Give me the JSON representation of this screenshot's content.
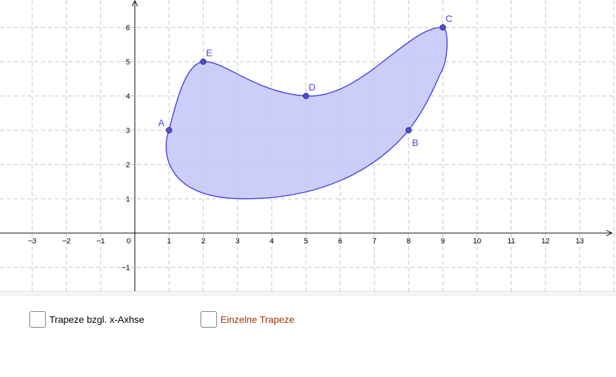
{
  "graphics": {
    "x_ticks": [
      "−3",
      "−2",
      "−1",
      "0",
      "1",
      "2",
      "3",
      "4",
      "5",
      "6",
      "7",
      "8",
      "9",
      "10",
      "11",
      "12",
      "13"
    ],
    "y_ticks": [
      "−1",
      "1",
      "2",
      "3",
      "4",
      "5",
      "6"
    ],
    "points": [
      {
        "name": "A",
        "x": 1,
        "y": 3
      },
      {
        "name": "B",
        "x": 8,
        "y": 3
      },
      {
        "name": "C",
        "x": 9,
        "y": 6
      },
      {
        "name": "D",
        "x": 5,
        "y": 4
      },
      {
        "name": "E",
        "x": 2,
        "y": 5
      }
    ],
    "colors": {
      "curve": "#4646dc",
      "fill": "#c8c8fa",
      "point_fill": "#5050d2",
      "point_stroke": "#1e1e8c",
      "point_label": "#4646dc"
    }
  },
  "controls": {
    "checkbox1_label": "Trapeze bzgl. x-Axhse",
    "checkbox1_checked": false,
    "checkbox1_color": "#000000",
    "checkbox2_label": "Einzelne Trapeze",
    "checkbox2_checked": false,
    "checkbox2_color": "#993300"
  }
}
